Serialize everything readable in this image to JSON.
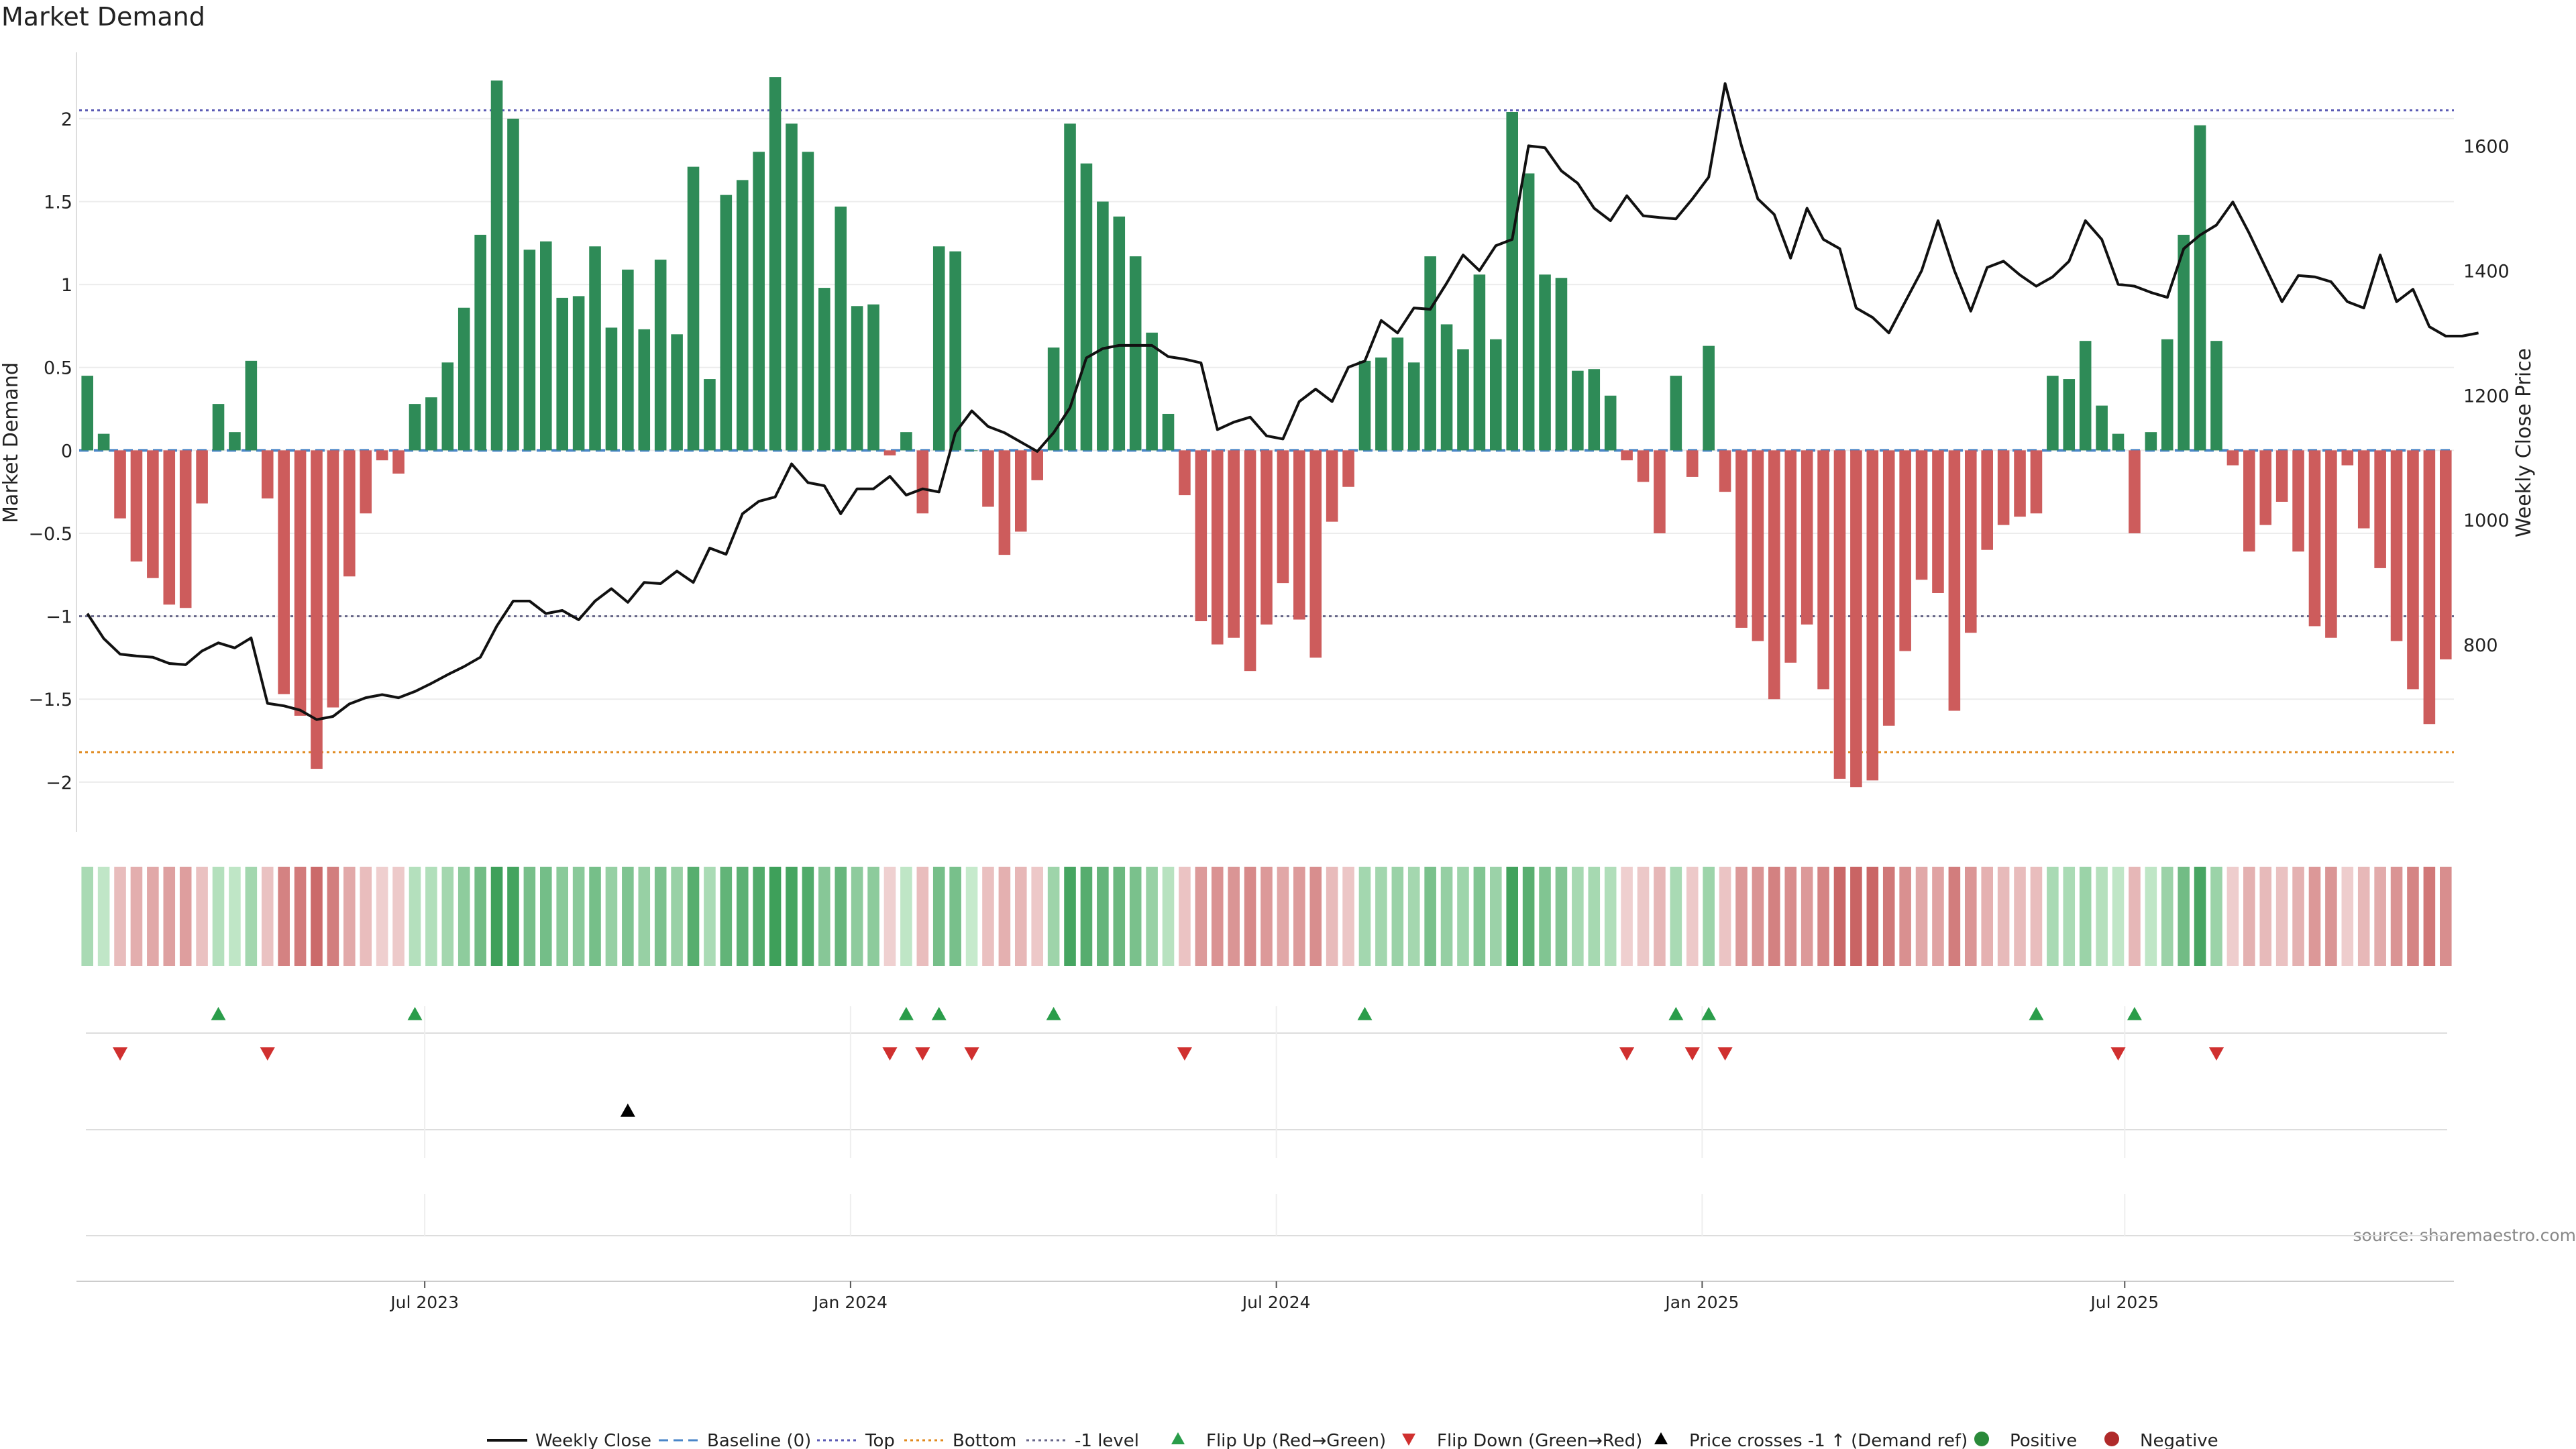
{
  "chart_data": {
    "type": "bar",
    "title": "Market Demand",
    "ylabel_left": "Market Demand",
    "ylabel_right": "Weekly Close Price",
    "ylim_left": [
      -2.3,
      2.4
    ],
    "ylim_right": [
      500,
      1750
    ],
    "yticks_left": [
      "2",
      "1.5",
      "1",
      "0.5",
      "0",
      "−0.5",
      "−1",
      "−1.5",
      "−2"
    ],
    "yticks_left_values": [
      2,
      1.5,
      1,
      0.5,
      0,
      -0.5,
      -1,
      -1.5,
      -2
    ],
    "yticks_right": [
      "1600",
      "1400",
      "1200",
      "1000",
      "800"
    ],
    "yticks_right_values": [
      1600,
      1400,
      1200,
      1000,
      800
    ],
    "x_start": "2023-02-03",
    "x_interval_days": 7,
    "xticks": [
      "Jul 2023",
      "Jan 2024",
      "Jul 2024",
      "Jan 2025",
      "Jul 2025"
    ],
    "xticks_week_index": [
      21.1,
      47.1,
      73.1,
      99.1,
      124.9
    ],
    "reference_lines": [
      {
        "name": "Top",
        "value": 2.05,
        "style": "dotted",
        "color": "#5a5ab4"
      },
      {
        "name": "Bottom",
        "value": -1.82,
        "style": "dotted",
        "color": "#e08a1e"
      },
      {
        "name": "-1 level",
        "value": -1.0,
        "style": "dotted",
        "color": "#666688"
      },
      {
        "name": "Baseline (0)",
        "value": 0,
        "style": "dashed",
        "color": "#4a86c8"
      }
    ],
    "colors": {
      "positive": "#2e8b57",
      "negative": "#cd5c5c",
      "price": "#111111",
      "flip_up": "#2a9d4a",
      "flip_down": "#d0302f"
    },
    "series": [
      {
        "name": "Market Demand",
        "values": [
          0.45,
          0.1,
          -0.41,
          -0.67,
          -0.77,
          -0.93,
          -0.95,
          -0.32,
          0.28,
          0.11,
          0.54,
          -0.29,
          -1.47,
          -1.6,
          -1.92,
          -1.55,
          -0.76,
          -0.38,
          -0.06,
          -0.14,
          0.28,
          0.32,
          0.53,
          0.86,
          1.3,
          2.23,
          2.0,
          1.21,
          1.26,
          0.92,
          0.93,
          1.23,
          0.74,
          1.09,
          0.73,
          1.15,
          0.7,
          1.71,
          0.43,
          1.54,
          1.63,
          1.8,
          2.25,
          1.97,
          1.8,
          0.98,
          1.47,
          0.87,
          0.88,
          -0.03,
          0.11,
          -0.38,
          1.23,
          1.2,
          0.0,
          -0.34,
          -0.63,
          -0.49,
          -0.18,
          0.62,
          1.97,
          1.73,
          1.5,
          1.41,
          1.17,
          0.71,
          0.22,
          -0.27,
          -1.03,
          -1.17,
          -1.13,
          -1.33,
          -1.05,
          -0.8,
          -1.02,
          -1.25,
          -0.43,
          -0.22,
          0.54,
          0.56,
          0.68,
          0.53,
          1.17,
          0.76,
          0.61,
          1.06,
          0.67,
          2.04,
          1.67,
          1.06,
          1.04,
          0.48,
          0.49,
          0.33,
          -0.06,
          -0.19,
          -0.5,
          0.45,
          -0.16,
          0.63,
          -0.25,
          -1.07,
          -1.15,
          -1.5,
          -1.28,
          -1.05,
          -1.44,
          -1.98,
          -2.03,
          -1.99,
          -1.66,
          -1.21,
          -0.78,
          -0.86,
          -1.57,
          -1.1,
          -0.6,
          -0.45,
          -0.4,
          -0.38,
          0.45,
          0.43,
          0.66,
          0.27,
          0.1,
          -0.5,
          0.11,
          0.67,
          1.3,
          1.96,
          0.66,
          -0.09,
          -0.61,
          -0.45,
          -0.31,
          -0.61,
          -1.06,
          -1.13,
          -0.09,
          -0.47,
          -0.71,
          -1.15,
          -1.44,
          -1.65,
          -1.26
        ]
      },
      {
        "name": "Weekly Close",
        "values": [
          850,
          810,
          785,
          782,
          780,
          770,
          768,
          790,
          803,
          795,
          811,
          706,
          702,
          695,
          680,
          685,
          705,
          715,
          720,
          715,
          725,
          738,
          752,
          765,
          780,
          830,
          870,
          870,
          850,
          855,
          840,
          870,
          890,
          868,
          900,
          898,
          918,
          900,
          955,
          945,
          1010,
          1030,
          1037,
          1090,
          1060,
          1055,
          1010,
          1050,
          1050,
          1070,
          1040,
          1050,
          1045,
          1140,
          1175,
          1150,
          1140,
          1125,
          1110,
          1140,
          1180,
          1260,
          1275,
          1280,
          1280,
          1280,
          1262,
          1258,
          1252,
          1145,
          1157,
          1165,
          1135,
          1130,
          1190,
          1210,
          1190,
          1245,
          1255,
          1320,
          1300,
          1340,
          1338,
          1380,
          1425,
          1400,
          1440,
          1450,
          1600,
          1597,
          1560,
          1540,
          1500,
          1480,
          1520,
          1488,
          1485,
          1483,
          1515,
          1550,
          1700,
          1600,
          1515,
          1490,
          1420,
          1500,
          1450,
          1435,
          1340,
          1325,
          1300,
          1350,
          1400,
          1480,
          1400,
          1335,
          1405,
          1415,
          1393,
          1375,
          1390,
          1415,
          1480,
          1450,
          1378,
          1375,
          1365,
          1357,
          1435,
          1457,
          1473,
          1510,
          1460,
          1405,
          1350,
          1392,
          1390,
          1382,
          1350,
          1340,
          1425,
          1350,
          1370,
          1310,
          1295,
          1295,
          1300
        ]
      }
    ],
    "flip_up_indices": [
      8,
      20,
      50,
      52,
      59,
      78,
      97,
      99,
      119,
      125
    ],
    "flip_down_indices": [
      2,
      11,
      49,
      51,
      54,
      67,
      94,
      98,
      100,
      124,
      130
    ],
    "price_cross_indices": [
      33
    ],
    "legend": [
      "Weekly Close",
      "Baseline (0)",
      "Top",
      "Bottom",
      "-1 level",
      "Flip Up (Red→Green)",
      "Flip Down (Green→Red)",
      "Price crosses -1 ↑ (Demand ref)",
      "Positive",
      "Negative"
    ],
    "legend_position": "bottom-center",
    "source": "source: sharemaestro.com"
  }
}
